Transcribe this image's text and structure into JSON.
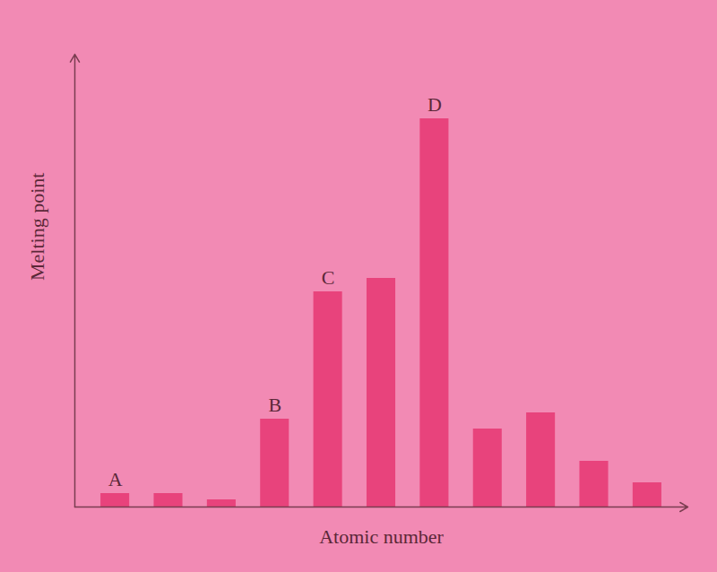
{
  "chart_data": {
    "type": "bar",
    "x_label": "Atomic number",
    "y_label": "Melting point",
    "categories": [
      null,
      null,
      null,
      null,
      null,
      null,
      null,
      null,
      null,
      null,
      null
    ],
    "values": [
      15,
      15,
      8,
      98,
      240,
      255,
      433,
      87,
      105,
      51,
      27
    ],
    "bar_labels": [
      "A",
      null,
      null,
      "B",
      "C",
      null,
      "D",
      null,
      null,
      null,
      null
    ],
    "color": "#e8437c",
    "ylim": [
      0,
      505
    ],
    "yticks": [],
    "tick_labels": false,
    "grid": false
  }
}
